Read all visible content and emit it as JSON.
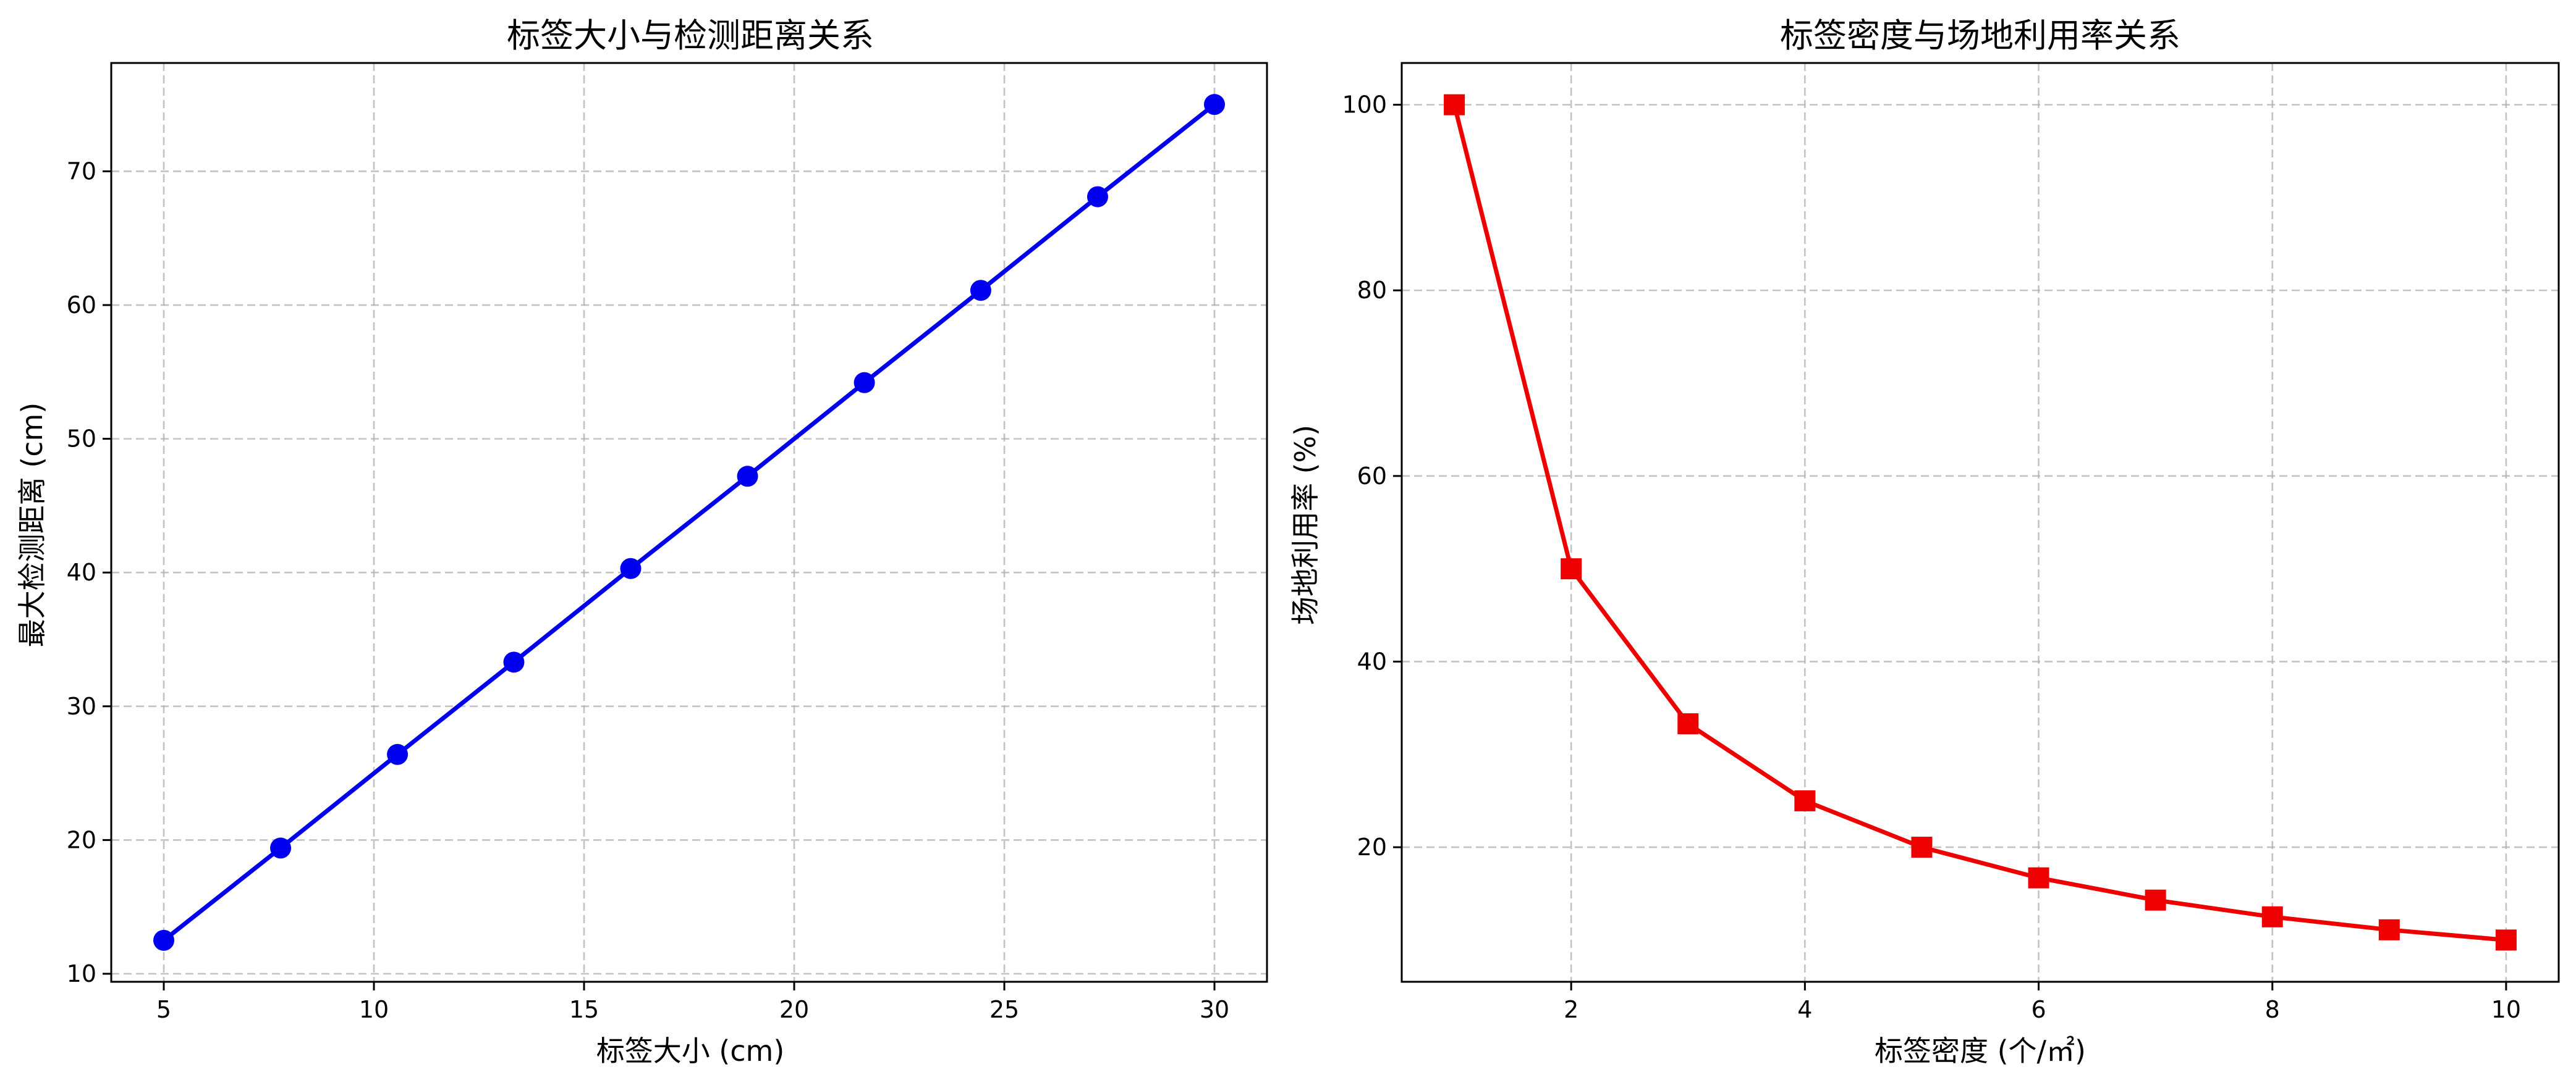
{
  "chart_data": [
    {
      "type": "line",
      "title": "标签大小与检测距离关系",
      "xlabel": "标签大小 (cm)",
      "ylabel": "最大检测距离 (cm)",
      "xlim": [
        3.75,
        31.25
      ],
      "ylim": [
        9.4,
        78.1
      ],
      "xticks": [
        5,
        10,
        15,
        20,
        25,
        30
      ],
      "yticks": [
        10,
        20,
        30,
        40,
        50,
        60,
        70
      ],
      "grid": true,
      "colors": {
        "line": "#0000ee",
        "marker": "#0000ee"
      },
      "marker": "circle",
      "series": [
        {
          "x": [
            5.0,
            7.78,
            10.56,
            13.33,
            16.11,
            18.89,
            21.67,
            24.44,
            27.22,
            30.0
          ],
          "y": [
            12.5,
            19.4,
            26.4,
            33.3,
            40.3,
            47.2,
            54.2,
            61.1,
            68.1,
            75.0
          ]
        }
      ]
    },
    {
      "type": "line",
      "title": "标签密度与场地利用率关系",
      "xlabel": "标签密度 (个/㎡)",
      "ylabel": "场地利用率 (%)",
      "xlim": [
        0.55,
        10.45
      ],
      "ylim": [
        5.5,
        104.5
      ],
      "xticks": [
        2,
        4,
        6,
        8,
        10
      ],
      "yticks": [
        20,
        40,
        60,
        80,
        100
      ],
      "grid": true,
      "colors": {
        "line": "#ee0000",
        "marker": "#ee0000"
      },
      "marker": "square",
      "series": [
        {
          "x": [
            1,
            2,
            3,
            4,
            5,
            6,
            7,
            8,
            9,
            10
          ],
          "y": [
            100,
            50,
            33.3,
            25,
            20,
            16.7,
            14.3,
            12.5,
            11.1,
            10
          ]
        }
      ]
    }
  ]
}
